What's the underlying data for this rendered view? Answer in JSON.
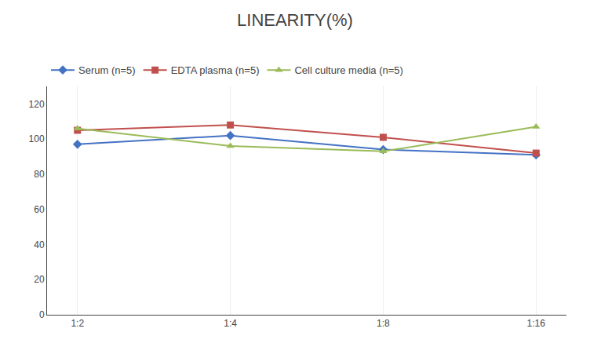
{
  "chart_data": {
    "type": "line",
    "title": "LINEARITY(%)",
    "categories": [
      "1:2",
      "1:4",
      "1:8",
      "1:16"
    ],
    "series": [
      {
        "name": "Serum (n=5)",
        "color": "#4472C4",
        "marker": "diamond",
        "values": [
          97,
          102,
          94,
          91
        ]
      },
      {
        "name": "EDTA plasma (n=5)",
        "color": "#C0504D",
        "marker": "square",
        "values": [
          105,
          108,
          101,
          92
        ]
      },
      {
        "name": "Cell culture media (n=5)",
        "color": "#9BBB59",
        "marker": "triangle-up",
        "values": [
          106,
          96,
          93,
          107
        ]
      }
    ],
    "ylim": [
      0,
      130
    ],
    "yticks": [
      0,
      20,
      40,
      60,
      80,
      100,
      120
    ],
    "grid": "x",
    "legend": "top"
  }
}
